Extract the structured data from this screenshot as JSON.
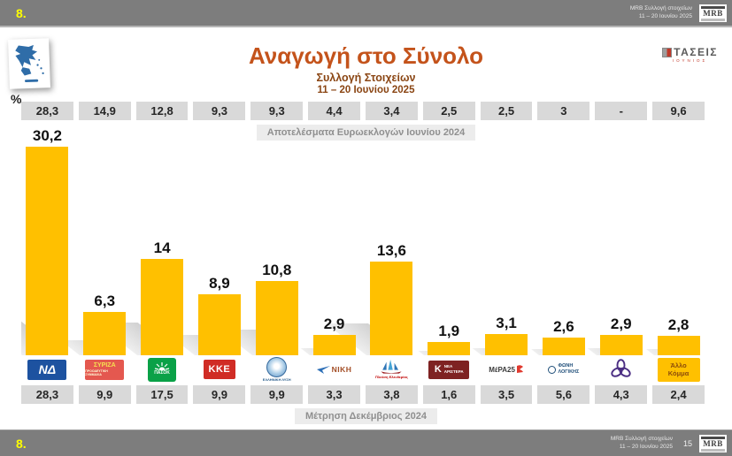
{
  "slide_number": "8.",
  "source_note": {
    "line1": "MRB Συλλογή στοιχείων",
    "line2": "11 – 20 Ιουνίου 2025"
  },
  "brand": {
    "mrb": "MRB",
    "taseis": "ΤΑΣΕΙΣ",
    "taseis_sub": "ΙΟΥΝΙΟΣ"
  },
  "title": {
    "main": "Αναγωγή στο Σύνολο",
    "sub1": "Συλλογή Στοιχείων",
    "sub2": "11 – 20 Ιουνίου 2025"
  },
  "footer": {
    "page": "15"
  },
  "colors": {
    "bar": "#FFC000",
    "header_bg": "#7D7D7D",
    "title_accent": "#C4531B",
    "value_box_bg": "#D9D9D9",
    "slide_number": "#FFFF00"
  },
  "parties": [
    {
      "name": "ΝΔ - Νέα Δημοκρατία",
      "kind": "nd",
      "text": "ΝΔ"
    },
    {
      "name": "ΣΥΡΙΖΑ",
      "kind": "syriza",
      "text": "ΣΥΡΙΖΑ"
    },
    {
      "name": "ΠΑΣΟΚ",
      "kind": "pasok",
      "text": "ΠΑΣΟΚ"
    },
    {
      "name": "ΚΚΕ",
      "kind": "kke",
      "text": "ΚΚΕ"
    },
    {
      "name": "Ελληνική Λύση",
      "kind": "ellysi",
      "text": "ΕΛΛΗΝΙΚΗ ΛΥΣΗ"
    },
    {
      "name": "ΝΙΚΗ",
      "kind": "niki",
      "text": "ΝΙΚΗ"
    },
    {
      "name": "Πλεύση Ελευθερίας",
      "kind": "plefsi",
      "text": "Πλεύση Ελευθερίας"
    },
    {
      "name": "Νέα Αριστερά",
      "kind": "nar",
      "text": "ΝΕΑ ΑΡΙΣΤΕΡΑ"
    },
    {
      "name": "ΜέΡΑ25",
      "kind": "mera",
      "text": "ΜέΡΑ25"
    },
    {
      "name": "Φωνή Λογικής",
      "kind": "foni",
      "text": "ΦΩΝΗ ΛΟΓΙΚΗΣ"
    },
    {
      "name": "Κίνημα Δημοκρατίας",
      "kind": "kidim",
      "text": ""
    },
    {
      "name": "Άλλο Κόμμα",
      "kind": "allo",
      "text": "Άλλο Κόμμα"
    }
  ],
  "chart_data": {
    "type": "bar",
    "title": "Αναγωγή στο Σύνολο",
    "subtitle": "Συλλογή Στοιχείων 11 – 20 Ιουνίου 2025",
    "unit": "%",
    "ylim": [
      0,
      33
    ],
    "grid": false,
    "categories": [
      "ΝΔ - Νέα Δημοκρατία",
      "ΣΥΡΙΖΑ",
      "ΠΑΣΟΚ",
      "ΚΚΕ",
      "Ελληνική Λύση",
      "ΝΙΚΗ",
      "Πλεύση Ελευθερίας",
      "Νέα Αριστερά",
      "ΜέΡΑ25",
      "Φωνή Λογικής",
      "Κίνημα Δημοκρατίας",
      "Άλλο Κόμμα"
    ],
    "series": [
      {
        "name": "Αποτελέσματα Ευρωεκλογών Ιουνίου 2024",
        "values": [
          28.3,
          14.9,
          12.8,
          9.3,
          9.3,
          4.4,
          3.4,
          2.5,
          2.5,
          3,
          null,
          9.6
        ],
        "labels": [
          "28,3",
          "14,9",
          "12,8",
          "9,3",
          "9,3",
          "4,4",
          "3,4",
          "2,5",
          "2,5",
          "3",
          "-",
          "9,6"
        ]
      },
      {
        "name": "Αναγωγή στο Σύνολο 11 – 20 Ιουνίου 2025",
        "values": [
          30.2,
          6.3,
          14,
          8.9,
          10.8,
          2.9,
          13.6,
          1.9,
          3.1,
          2.6,
          2.9,
          2.8
        ],
        "labels": [
          "30,2",
          "6,3",
          "14",
          "8,9",
          "10,8",
          "2,9",
          "13,6",
          "1,9",
          "3,1",
          "2,6",
          "2,9",
          "2,8"
        ]
      },
      {
        "name": "Μέτρηση Δεκέμβριος 2024",
        "values": [
          28.3,
          9.9,
          17.5,
          9.9,
          9.9,
          3.3,
          3.8,
          1.6,
          3.5,
          5.6,
          4.3,
          2.4
        ],
        "labels": [
          "28,3",
          "9,9",
          "17,5",
          "9,9",
          "9,9",
          "3,3",
          "3,8",
          "1,6",
          "3,5",
          "5,6",
          "4,3",
          "2,4"
        ]
      }
    ]
  }
}
